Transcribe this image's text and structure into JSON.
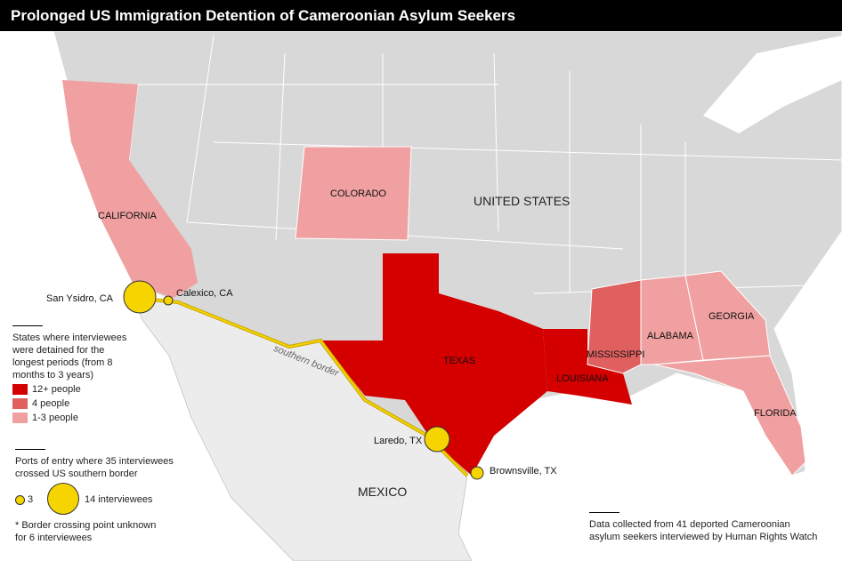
{
  "title": "Prolonged US Immigration Detention of Cameroonian Asylum Seekers",
  "colors": {
    "high": "#d40000",
    "mid": "#e06060",
    "low": "#f0a0a0",
    "land": "#d8d8d8",
    "mexico": "#ececec",
    "port": "#f5d400"
  },
  "labels": {
    "country_us": "UNITED STATES",
    "country_mx": "MEXICO",
    "border": "southern border"
  },
  "states": [
    {
      "name": "CALIFORNIA",
      "category": "1-3 people"
    },
    {
      "name": "COLORADO",
      "category": "1-3 people"
    },
    {
      "name": "TEXAS",
      "category": "12+ people"
    },
    {
      "name": "LOUISIANA",
      "category": "12+ people"
    },
    {
      "name": "MISSISSIPPI",
      "category": "4 people"
    },
    {
      "name": "ALABAMA",
      "category": "1-3 people"
    },
    {
      "name": "GEORGIA",
      "category": "1-3 people"
    },
    {
      "name": "FLORIDA",
      "category": "1-3 people"
    }
  ],
  "ports": [
    {
      "name": "San Ysidro, CA",
      "size": "large"
    },
    {
      "name": "Calexico, CA",
      "size": "small"
    },
    {
      "name": "Laredo, TX",
      "size": "medium"
    },
    {
      "name": "Brownsville, TX",
      "size": "small"
    }
  ],
  "legend": {
    "states_title": "States where interviewees were detained for the longest periods (from 8 months to 3 years)",
    "items": [
      "12+ people",
      "4 people",
      "1-3 people"
    ],
    "ports_title": "Ports of entry where 35 interviewees crossed US southern border",
    "small_label": "3",
    "large_label": "14 interviewees",
    "note": "* Border crossing point unknown for 6 interviewees"
  },
  "source": "Data collected from 41 deported Cameroonian asylum seekers interviewed by Human Rights Watch"
}
